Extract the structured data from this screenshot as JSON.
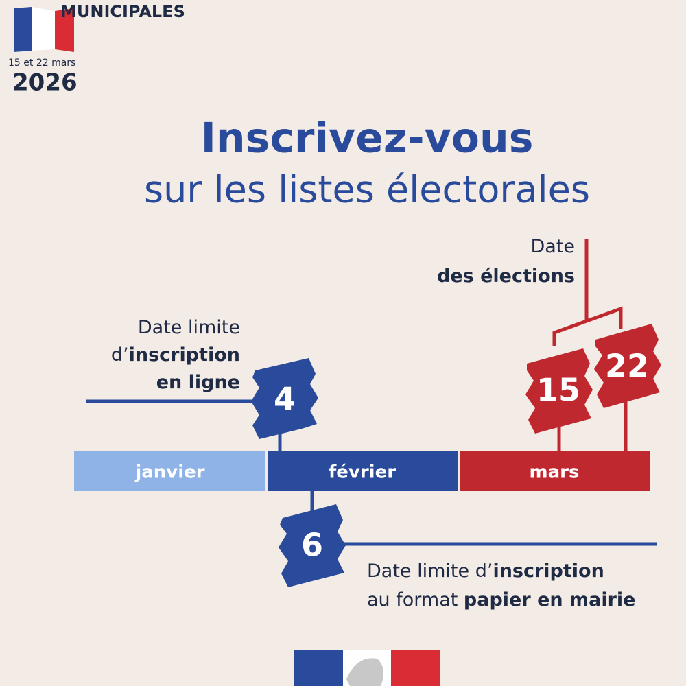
{
  "header": {
    "title": "MUNICIPALES",
    "dates": "15 et 22 mars",
    "year": "2026"
  },
  "headline": {
    "title": "Inscrivez-vous",
    "subtitle": "sur les listes électorales"
  },
  "timeline": {
    "months": [
      "janvier",
      "février",
      "mars"
    ]
  },
  "online": {
    "day": 4,
    "lines": [
      [
        {
          "text": "Date limite",
          "bold": false
        }
      ],
      [
        {
          "text": "d’",
          "bold": false
        },
        {
          "text": "inscription",
          "bold": true
        }
      ],
      [
        {
          "text": "en ligne",
          "bold": true
        }
      ]
    ]
  },
  "elections": {
    "days": [
      15,
      22
    ],
    "lines": [
      [
        {
          "text": "Date",
          "bold": false
        }
      ],
      [
        {
          "text": "des élections",
          "bold": true
        }
      ]
    ]
  },
  "paper": {
    "day": 6,
    "lines": [
      [
        {
          "text": "Date limite d’",
          "bold": false
        },
        {
          "text": "inscription",
          "bold": true
        }
      ],
      [
        {
          "text": "au format ",
          "bold": false
        },
        {
          "text": "papier en mairie",
          "bold": true
        }
      ]
    ]
  }
}
